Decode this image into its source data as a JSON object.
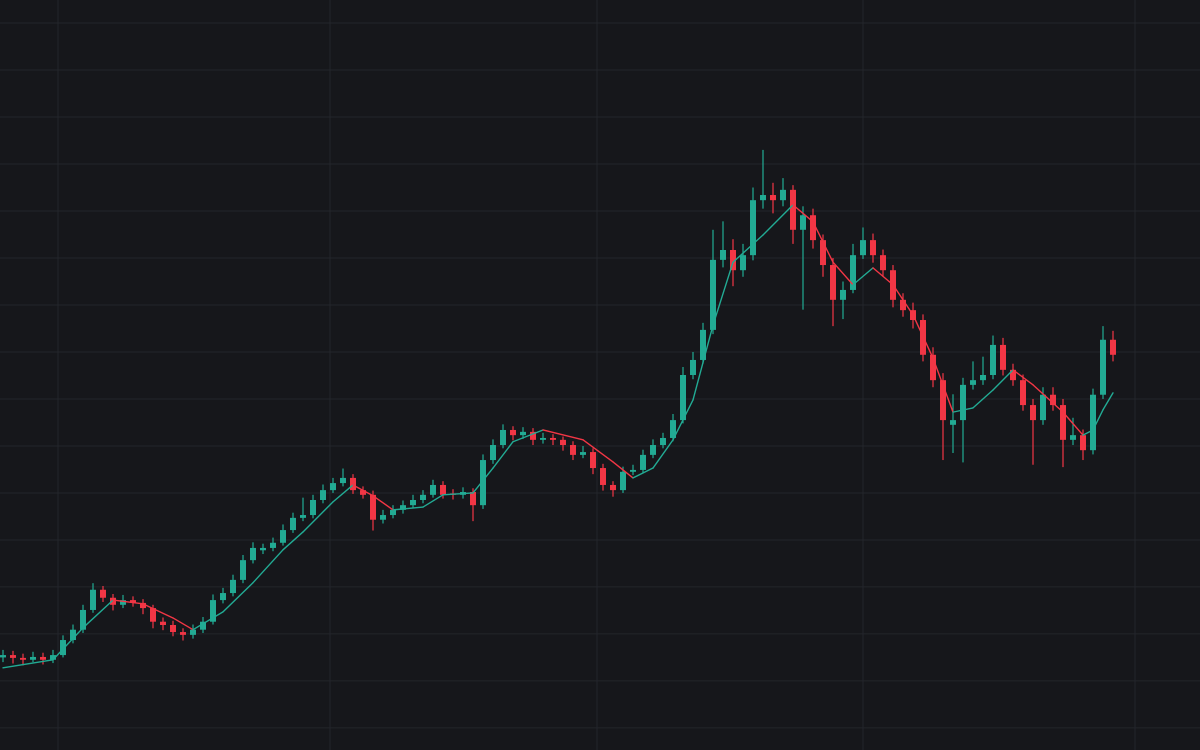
{
  "chart_data": {
    "type": "candlestick",
    "up_color": "#22ab94",
    "down_color": "#f23645",
    "grid": true,
    "grid_color": "#23252b",
    "background": "#16171b",
    "xlim": [
      -0.3,
      119.7
    ],
    "xticks": [
      5.5,
      32.7,
      59.4,
      86,
      113.2
    ],
    "ylim": [
      -0.47,
      15.49
    ],
    "yticks": [
      0,
      1,
      2,
      3,
      4,
      5,
      6,
      7,
      8,
      9,
      10,
      11,
      12,
      13,
      14,
      15
    ],
    "x": [
      0,
      1,
      2,
      3,
      4,
      5,
      6,
      7,
      8,
      9,
      10,
      11,
      12,
      13,
      14,
      15,
      16,
      17,
      18,
      19,
      20,
      21,
      22,
      23,
      24,
      25,
      26,
      27,
      28,
      29,
      30,
      31,
      32,
      33,
      34,
      35,
      36,
      37,
      38,
      39,
      40,
      41,
      42,
      43,
      44,
      45,
      46,
      47,
      48,
      49,
      50,
      51,
      52,
      53,
      54,
      55,
      56,
      57,
      58,
      59,
      60,
      61,
      62,
      63,
      64,
      65,
      66,
      67,
      68,
      69,
      70,
      71,
      72,
      73,
      74,
      75,
      76,
      77,
      78,
      79,
      80,
      81,
      82,
      83,
      84,
      85,
      86,
      87,
      88,
      89,
      90,
      91,
      92,
      93,
      94,
      95,
      96,
      97,
      98,
      99,
      100,
      101,
      102,
      103,
      104,
      105,
      106,
      107,
      108,
      109,
      110,
      111
    ],
    "ohlc": [
      [
        1.5,
        1.66,
        1.4,
        1.55
      ],
      [
        1.55,
        1.64,
        1.37,
        1.49
      ],
      [
        1.49,
        1.58,
        1.33,
        1.45
      ],
      [
        1.45,
        1.62,
        1.4,
        1.51
      ],
      [
        1.51,
        1.6,
        1.35,
        1.45
      ],
      [
        1.45,
        1.66,
        1.38,
        1.55
      ],
      [
        1.55,
        1.97,
        1.5,
        1.87
      ],
      [
        1.87,
        2.2,
        1.8,
        2.09
      ],
      [
        2.09,
        2.62,
        2.02,
        2.51
      ],
      [
        2.51,
        3.08,
        2.45,
        2.94
      ],
      [
        2.94,
        3.02,
        2.68,
        2.77
      ],
      [
        2.77,
        2.85,
        2.5,
        2.62
      ],
      [
        2.62,
        2.83,
        2.55,
        2.72
      ],
      [
        2.72,
        2.8,
        2.58,
        2.66
      ],
      [
        2.66,
        2.74,
        2.42,
        2.55
      ],
      [
        2.55,
        2.62,
        2.12,
        2.26
      ],
      [
        2.26,
        2.35,
        2.08,
        2.19
      ],
      [
        2.19,
        2.28,
        1.95,
        2.04
      ],
      [
        2.04,
        2.12,
        1.86,
        1.98
      ],
      [
        1.98,
        2.2,
        1.9,
        2.09
      ],
      [
        2.09,
        2.36,
        2.02,
        2.26
      ],
      [
        2.26,
        2.84,
        2.2,
        2.72
      ],
      [
        2.72,
        2.98,
        2.65,
        2.87
      ],
      [
        2.87,
        3.26,
        2.8,
        3.15
      ],
      [
        3.15,
        3.68,
        3.08,
        3.57
      ],
      [
        3.57,
        3.95,
        3.5,
        3.83
      ],
      [
        3.78,
        3.92,
        3.7,
        3.83
      ],
      [
        3.83,
        4.05,
        3.76,
        3.94
      ],
      [
        3.94,
        4.33,
        3.88,
        4.21
      ],
      [
        4.21,
        4.58,
        4.15,
        4.47
      ],
      [
        4.47,
        4.9,
        4.4,
        4.53
      ],
      [
        4.53,
        4.96,
        4.46,
        4.85
      ],
      [
        4.85,
        5.18,
        4.78,
        5.06
      ],
      [
        5.06,
        5.32,
        5.0,
        5.21
      ],
      [
        5.21,
        5.52,
        5.14,
        5.32
      ],
      [
        5.32,
        5.4,
        4.98,
        5.06
      ],
      [
        5.06,
        5.14,
        4.88,
        4.96
      ],
      [
        4.96,
        5.05,
        4.2,
        4.43
      ],
      [
        4.43,
        4.64,
        4.35,
        4.53
      ],
      [
        4.53,
        4.74,
        4.46,
        4.64
      ],
      [
        4.64,
        4.84,
        4.56,
        4.74
      ],
      [
        4.74,
        4.96,
        4.67,
        4.85
      ],
      [
        4.85,
        5.06,
        4.78,
        4.96
      ],
      [
        4.96,
        5.28,
        4.9,
        5.17
      ],
      [
        5.17,
        5.25,
        4.88,
        4.96
      ],
      [
        4.99,
        5.08,
        4.86,
        4.96
      ],
      [
        4.96,
        5.12,
        4.88,
        5.02
      ],
      [
        5.02,
        5.1,
        4.4,
        4.74
      ],
      [
        4.74,
        5.82,
        4.66,
        5.7
      ],
      [
        5.7,
        6.14,
        5.62,
        6.02
      ],
      [
        6.02,
        6.46,
        5.95,
        6.34
      ],
      [
        6.34,
        6.42,
        6.12,
        6.23
      ],
      [
        6.23,
        6.4,
        6.15,
        6.3
      ],
      [
        6.3,
        6.38,
        6.02,
        6.13
      ],
      [
        6.13,
        6.28,
        6.05,
        6.17
      ],
      [
        6.17,
        6.25,
        6.02,
        6.13
      ],
      [
        6.13,
        6.2,
        5.9,
        6.02
      ],
      [
        6.02,
        6.1,
        5.7,
        5.81
      ],
      [
        5.81,
        6.0,
        5.74,
        5.87
      ],
      [
        5.87,
        5.95,
        5.4,
        5.53
      ],
      [
        5.53,
        5.62,
        5.05,
        5.17
      ],
      [
        5.17,
        5.25,
        4.92,
        5.06
      ],
      [
        5.06,
        5.56,
        5.0,
        5.45
      ],
      [
        5.45,
        5.6,
        5.38,
        5.49
      ],
      [
        5.49,
        5.92,
        5.42,
        5.81
      ],
      [
        5.81,
        6.14,
        5.74,
        6.02
      ],
      [
        6.02,
        6.28,
        5.95,
        6.17
      ],
      [
        6.17,
        6.68,
        6.1,
        6.55
      ],
      [
        6.55,
        7.68,
        6.48,
        7.51
      ],
      [
        7.51,
        8.0,
        7.42,
        7.83
      ],
      [
        7.83,
        8.62,
        7.75,
        8.47
      ],
      [
        8.47,
        10.6,
        8.38,
        9.96
      ],
      [
        9.96,
        10.78,
        9.8,
        10.17
      ],
      [
        10.17,
        10.4,
        9.4,
        9.74
      ],
      [
        9.74,
        10.3,
        9.6,
        10.06
      ],
      [
        10.06,
        11.5,
        9.95,
        11.23
      ],
      [
        11.23,
        12.3,
        11.05,
        11.34
      ],
      [
        11.34,
        11.6,
        10.95,
        11.23
      ],
      [
        11.23,
        11.7,
        11.1,
        11.45
      ],
      [
        11.45,
        11.55,
        10.3,
        10.6
      ],
      [
        10.6,
        11.1,
        8.9,
        10.91
      ],
      [
        10.91,
        11.05,
        10.2,
        10.38
      ],
      [
        10.38,
        10.5,
        9.6,
        9.85
      ],
      [
        9.85,
        10.0,
        8.55,
        9.11
      ],
      [
        9.11,
        9.5,
        8.7,
        9.32
      ],
      [
        9.32,
        10.3,
        9.25,
        10.06
      ],
      [
        10.06,
        10.65,
        9.98,
        10.38
      ],
      [
        10.38,
        10.52,
        9.9,
        10.06
      ],
      [
        10.06,
        10.18,
        9.6,
        9.74
      ],
      [
        9.74,
        9.85,
        8.95,
        9.11
      ],
      [
        9.11,
        9.25,
        8.75,
        8.89
      ],
      [
        8.89,
        9.05,
        8.5,
        8.68
      ],
      [
        8.68,
        8.8,
        7.8,
        7.94
      ],
      [
        7.94,
        8.1,
        7.25,
        7.4
      ],
      [
        7.4,
        7.55,
        5.7,
        6.55
      ],
      [
        6.45,
        7.1,
        5.85,
        6.55
      ],
      [
        6.55,
        7.45,
        5.65,
        7.3
      ],
      [
        7.3,
        7.8,
        7.2,
        7.4
      ],
      [
        7.4,
        7.9,
        7.3,
        7.51
      ],
      [
        7.51,
        8.35,
        7.42,
        8.15
      ],
      [
        8.15,
        8.3,
        7.5,
        7.62
      ],
      [
        7.62,
        7.75,
        7.28,
        7.4
      ],
      [
        7.4,
        7.52,
        6.75,
        6.87
      ],
      [
        6.87,
        7.0,
        5.6,
        6.55
      ],
      [
        6.55,
        7.25,
        6.45,
        7.09
      ],
      [
        7.09,
        7.25,
        6.75,
        6.87
      ],
      [
        6.87,
        7.0,
        5.55,
        6.13
      ],
      [
        6.13,
        6.6,
        6.02,
        6.23
      ],
      [
        6.23,
        6.35,
        5.7,
        5.91
      ],
      [
        5.91,
        7.22,
        5.82,
        7.09
      ],
      [
        7.09,
        8.55,
        7.0,
        8.26
      ],
      [
        8.26,
        8.45,
        7.8,
        7.94
      ]
    ],
    "moving_average": {
      "x": [
        0,
        5,
        8,
        11,
        14,
        17,
        19,
        22,
        25,
        28,
        30,
        33,
        35,
        37,
        39,
        42,
        44,
        47,
        49,
        51,
        54,
        58,
        61,
        63,
        65,
        67,
        69,
        71,
        73,
        76,
        79,
        81,
        83,
        85,
        87,
        89,
        91,
        93,
        95,
        97,
        99,
        101,
        103,
        106,
        108,
        109,
        110,
        111
      ],
      "values": [
        1.28,
        1.45,
        2.13,
        2.72,
        2.64,
        2.34,
        2.09,
        2.47,
        3.09,
        3.79,
        4.17,
        4.81,
        5.17,
        4.94,
        4.64,
        4.7,
        4.96,
        5.0,
        5.53,
        6.09,
        6.34,
        6.13,
        5.66,
        5.32,
        5.53,
        6.13,
        6.98,
        8.57,
        9.91,
        10.49,
        11.13,
        10.77,
        9.91,
        9.43,
        9.79,
        9.43,
        8.79,
        7.87,
        6.72,
        6.81,
        7.19,
        7.62,
        7.3,
        6.72,
        6.23,
        6.34,
        6.77,
        7.13
      ]
    }
  }
}
